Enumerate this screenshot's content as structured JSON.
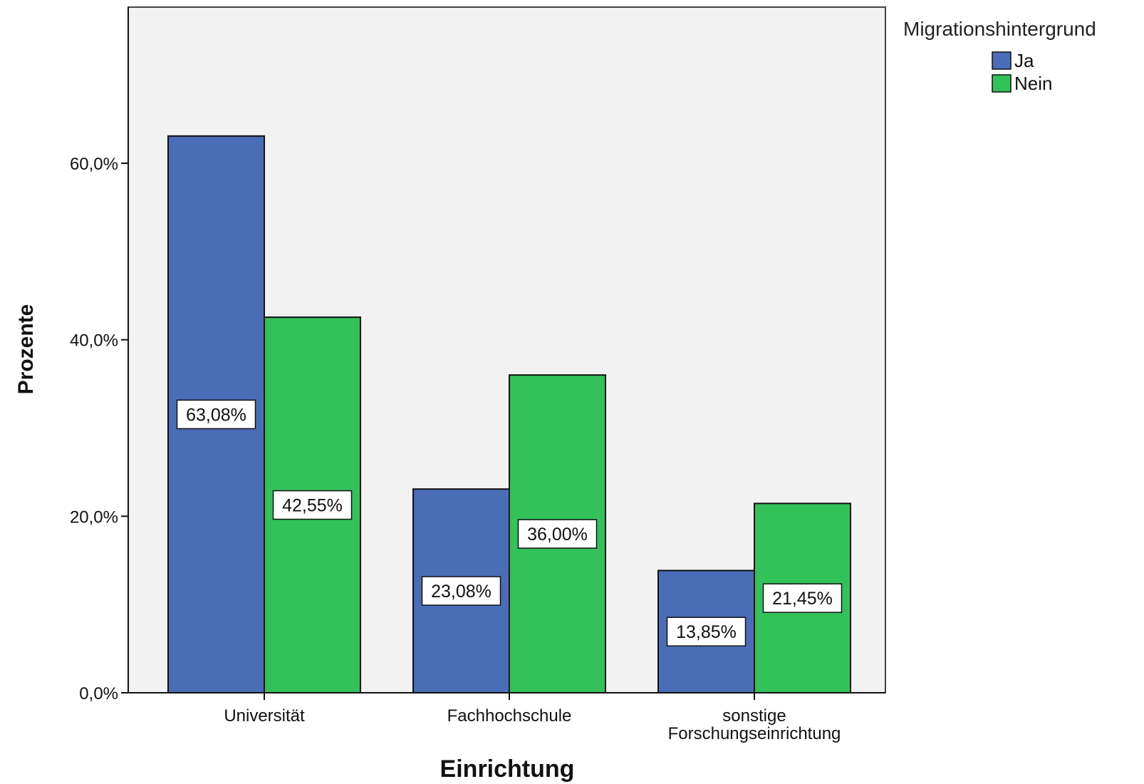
{
  "chart_data": {
    "type": "bar",
    "xlabel": "Einrichtung",
    "ylabel": "Prozente",
    "categories": [
      [
        "Universität"
      ],
      [
        "Fachhochschule"
      ],
      [
        "sonstige",
        "Forschungseinrichtung"
      ]
    ],
    "series": [
      {
        "name": "Ja",
        "color": "#4a6db8",
        "values": [
          63.08,
          23.08,
          13.85
        ],
        "labels": [
          "63,08%",
          "23,08%",
          "13,85%"
        ]
      },
      {
        "name": "Nein",
        "color": "#33c15a",
        "values": [
          42.55,
          36.0,
          21.45
        ],
        "labels": [
          "42,55%",
          "36,00%",
          "21,45%"
        ]
      }
    ],
    "ylim": [
      0,
      75
    ],
    "yticks": [
      {
        "value": 0,
        "label": "0,0%"
      },
      {
        "value": 20,
        "label": "20,0%"
      },
      {
        "value": 40,
        "label": "40,0%"
      },
      {
        "value": 60,
        "label": "60,0%"
      }
    ],
    "legend": {
      "title": "Migrationshintergrund",
      "placement": "top-right"
    },
    "grid": false,
    "plot_background": "#f2f2f2"
  }
}
